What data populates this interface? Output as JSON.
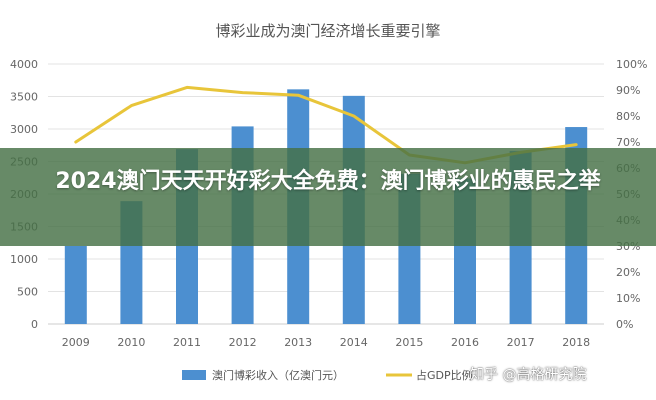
{
  "headline": "2024澳门天天开好彩大全免费：澳门博彩业的惠民之举",
  "watermark": "知乎 @高格研究院",
  "chart_data": {
    "type": "bar+line",
    "title": "博彩业成为澳门经济增长重要引擎",
    "categories": [
      "2009",
      "2010",
      "2011",
      "2012",
      "2013",
      "2014",
      "2015",
      "2016",
      "2017",
      "2018"
    ],
    "series": [
      {
        "name": "澳门博彩收入（亿澳门元）",
        "type": "bar",
        "axis": "left",
        "values": [
          1200,
          1890,
          2690,
          3040,
          3610,
          3510,
          2310,
          2240,
          2660,
          3030
        ],
        "color": "#4c8fd0"
      },
      {
        "name": "占GDP比例",
        "type": "line",
        "axis": "right",
        "values": [
          70,
          84,
          91,
          89,
          88,
          80,
          65,
          62,
          66,
          69
        ],
        "color": "#e8c53a"
      }
    ],
    "y_left": {
      "min": 0,
      "max": 4000,
      "ticks": [
        "0",
        "500",
        "1000",
        "1500",
        "2000",
        "2500",
        "3000",
        "3500",
        "4000"
      ]
    },
    "y_right": {
      "min": 0,
      "max": 100,
      "ticks": [
        "0%",
        "10%",
        "20%",
        "30%",
        "40%",
        "50%",
        "60%",
        "70%",
        "80%",
        "90%",
        "100%"
      ]
    },
    "grid": true,
    "legend_position": "bottom"
  }
}
